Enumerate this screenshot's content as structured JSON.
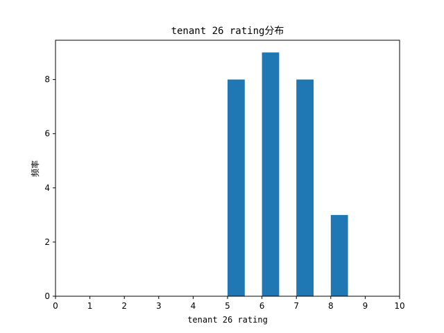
{
  "chart_data": {
    "type": "bar",
    "title": "tenant 26 rating分布",
    "xlabel": "tenant 26 rating",
    "ylabel": "频率",
    "bins": [
      {
        "x": 5,
        "value": 8
      },
      {
        "x": 6,
        "value": 9
      },
      {
        "x": 7,
        "value": 8
      },
      {
        "x": 8,
        "value": 3
      }
    ],
    "xlim": [
      0,
      10
    ],
    "ylim": [
      0,
      9.45
    ],
    "xticks": [
      "0",
      "1",
      "2",
      "3",
      "4",
      "5",
      "6",
      "7",
      "8",
      "9",
      "10"
    ],
    "yticks": [
      "0",
      "2",
      "4",
      "6",
      "8"
    ],
    "bar_width": 0.5,
    "bar_color": "#1f77b4",
    "grid": false,
    "legend": "none"
  }
}
